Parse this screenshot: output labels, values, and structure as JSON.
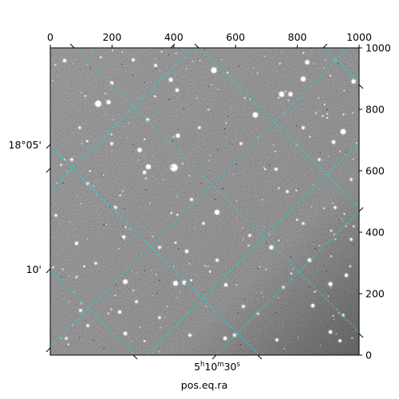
{
  "figure": {
    "x_pixel_axis": {
      "min": 0,
      "max": 1000,
      "ticks": [
        0,
        200,
        400,
        600,
        800,
        1000
      ],
      "labels": [
        "0",
        "200",
        "400",
        "600",
        "800",
        "1000"
      ]
    },
    "y_pixel_axis": {
      "min": 0,
      "max": 1000,
      "ticks": [
        0,
        200,
        400,
        600,
        800,
        1000
      ],
      "labels": [
        "0",
        "200",
        "400",
        "600",
        "800",
        "1000"
      ]
    },
    "dec_labels": [
      "18°05'",
      "10'"
    ],
    "ra_label": "5h10m30s",
    "ra_label_parts": {
      "hours": "5",
      "h_unit": "h",
      "minutes": "10",
      "m_unit": "m",
      "seconds": "30",
      "s_unit": "s"
    },
    "xlabel": "pos.eq.ra",
    "grid_color": "#1fd3d3",
    "image_tone": "greyscale"
  }
}
